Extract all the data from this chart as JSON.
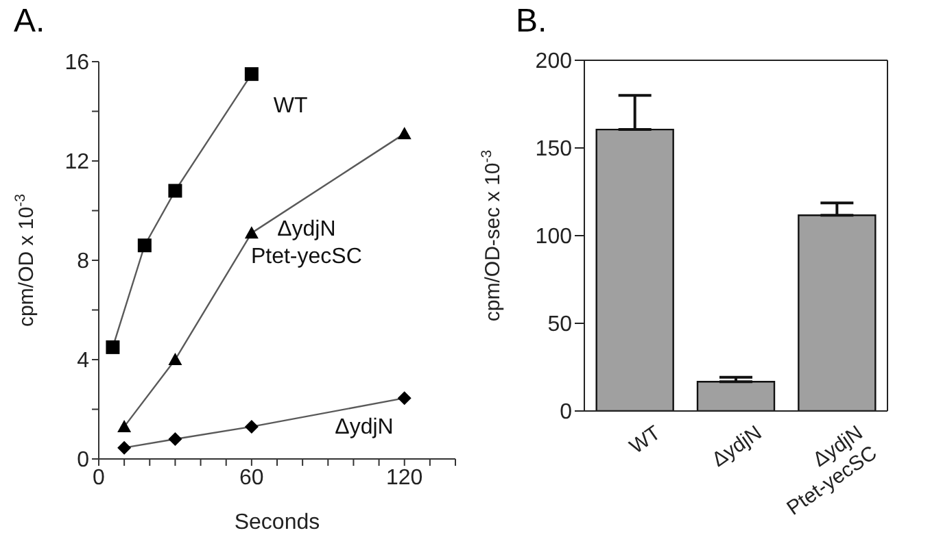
{
  "chart_data": [
    {
      "type": "line",
      "title": "A.",
      "xlabel": "Seconds",
      "ylabel": "cpm/OD x 10$^{-3}$",
      "xlim": [
        0,
        140
      ],
      "xticks": [
        0,
        {
          "value": 10,
          "label": null
        },
        {
          "value": 20,
          "label": null
        },
        {
          "value": 30,
          "label": null
        },
        {
          "value": 40,
          "label": null
        },
        {
          "value": 50,
          "label": null
        },
        60,
        {
          "value": 70,
          "label": null
        },
        {
          "value": 80,
          "label": null
        },
        {
          "value": 90,
          "label": null
        },
        {
          "value": 100,
          "label": null
        },
        {
          "value": 110,
          "label": null
        },
        120,
        {
          "value": 130,
          "label": null
        },
        {
          "value": 140,
          "label": null
        }
      ],
      "ylim": [
        0,
        16
      ],
      "yticks": [
        0,
        {
          "value": 2,
          "label": null
        },
        4,
        {
          "value": 6,
          "label": null
        },
        8,
        {
          "value": 10,
          "label": null
        },
        12,
        {
          "value": 14,
          "label": null
        },
        16
      ],
      "series": [
        {
          "name": "WT",
          "color": "#000000",
          "marker": "square",
          "x": [
            5.5,
            18,
            30,
            60
          ],
          "values": [
            4.5,
            8.6,
            10.8,
            15.5
          ]
        },
        {
          "name": "ΔydjN Ptet-yecSC",
          "color": "#000000",
          "marker": "triangle",
          "x": [
            10,
            30,
            60,
            120
          ],
          "values": [
            1.3,
            4.0,
            9.1,
            13.1
          ]
        },
        {
          "name": "ΔydjN",
          "color": "#000000",
          "marker": "diamond",
          "x": [
            10,
            30,
            60,
            120
          ],
          "values": [
            0.45,
            0.8,
            1.3,
            2.45
          ]
        }
      ]
    },
    {
      "type": "bar",
      "title": "B.",
      "ylabel": "cpm/OD-sec x 10$^{-3}$",
      "categories": [
        "WT",
        "ΔydjN",
        "ΔydjN Ptet-yecSC"
      ],
      "values": [
        160.5,
        16.7,
        111.6
      ],
      "color": "#a0a0a0",
      "errors": [
        [
          160.5,
          180
        ],
        [
          16.7,
          19.2
        ],
        [
          111.6,
          118.7
        ]
      ],
      "ylim": [
        0,
        200
      ],
      "yticks": [
        0,
        50,
        100,
        150,
        200
      ]
    }
  ]
}
